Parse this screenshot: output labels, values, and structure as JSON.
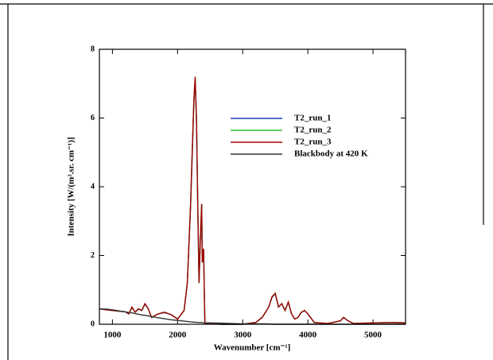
{
  "chart_data": {
    "type": "line",
    "x_label": "Wavenumber [cm⁻¹]",
    "y_label": "Intensity [W/(m².sr. cm⁻¹)]",
    "x": [
      800,
      900,
      1000,
      1100,
      1200,
      1250,
      1300,
      1350,
      1400,
      1450,
      1500,
      1550,
      1600,
      1700,
      1800,
      1900,
      2000,
      2100,
      2150,
      2200,
      2250,
      2270,
      2290,
      2310,
      2330,
      2350,
      2370,
      2380,
      2400,
      2410,
      2420,
      2500,
      2700,
      3000,
      3200,
      3300,
      3400,
      3450,
      3500,
      3550,
      3600,
      3650,
      3700,
      3750,
      3800,
      3850,
      3900,
      3950,
      4000,
      4100,
      4300,
      4500,
      4550,
      4600,
      4700,
      5000,
      5300,
      5500
    ],
    "series": [
      {
        "name": "T2_run_1",
        "color": "#1f3fbf",
        "values": [
          0.45,
          0.42,
          0.4,
          0.38,
          0.36,
          0.3,
          0.48,
          0.35,
          0.44,
          0.4,
          0.58,
          0.45,
          0.2,
          0.3,
          0.34,
          0.28,
          0.15,
          0.4,
          1.2,
          3.4,
          6.4,
          7.1,
          6.0,
          3.5,
          1.2,
          2.5,
          3.4,
          1.8,
          2.1,
          1.0,
          0.02,
          0.01,
          0,
          0,
          0.05,
          0.2,
          0.5,
          0.78,
          0.88,
          0.5,
          0.6,
          0.4,
          0.63,
          0.3,
          0.15,
          0.2,
          0.34,
          0.4,
          0.3,
          0.05,
          0.02,
          0.1,
          0.2,
          0.12,
          0.02,
          0.04,
          0.05,
          0.04
        ]
      },
      {
        "name": "T2_run_2",
        "color": "#2db82d",
        "values": [
          0.45,
          0.42,
          0.4,
          0.38,
          0.36,
          0.3,
          0.49,
          0.35,
          0.45,
          0.4,
          0.59,
          0.45,
          0.2,
          0.3,
          0.35,
          0.28,
          0.15,
          0.4,
          1.2,
          3.5,
          6.5,
          7.15,
          6.0,
          3.5,
          1.2,
          2.5,
          3.5,
          1.8,
          2.2,
          1.0,
          0.02,
          0.01,
          0,
          0,
          0.05,
          0.2,
          0.5,
          0.79,
          0.89,
          0.5,
          0.6,
          0.4,
          0.64,
          0.3,
          0.15,
          0.2,
          0.35,
          0.4,
          0.3,
          0.05,
          0.02,
          0.1,
          0.2,
          0.12,
          0.02,
          0.04,
          0.05,
          0.04
        ]
      },
      {
        "name": "T2_run_3",
        "color": "#a00000",
        "values": [
          0.45,
          0.42,
          0.4,
          0.38,
          0.36,
          0.3,
          0.5,
          0.35,
          0.45,
          0.4,
          0.6,
          0.45,
          0.2,
          0.3,
          0.35,
          0.28,
          0.15,
          0.4,
          1.2,
          3.5,
          6.5,
          7.2,
          6.0,
          3.5,
          1.2,
          2.5,
          3.5,
          1.8,
          2.2,
          1.0,
          0.02,
          0.01,
          0,
          0,
          0.05,
          0.2,
          0.5,
          0.8,
          0.9,
          0.5,
          0.6,
          0.4,
          0.65,
          0.3,
          0.15,
          0.2,
          0.35,
          0.4,
          0.3,
          0.05,
          0.02,
          0.1,
          0.2,
          0.12,
          0.02,
          0.04,
          0.05,
          0.04
        ]
      },
      {
        "name": "Blackbody at 420 K",
        "color": "#333333",
        "values": [
          0.45,
          0.44,
          0.42,
          0.39,
          0.36,
          0.34,
          0.33,
          0.31,
          0.29,
          0.27,
          0.26,
          0.24,
          0.22,
          0.19,
          0.16,
          0.13,
          0.11,
          0.09,
          0.08,
          0.07,
          0.06,
          0.06,
          0.06,
          0.05,
          0.05,
          0.05,
          0.05,
          0.05,
          0.04,
          0.04,
          0.04,
          0.04,
          0.03,
          0.01,
          0.01,
          0.01,
          0.01,
          0,
          0,
          0,
          0,
          0,
          0,
          0,
          0,
          0,
          0,
          0,
          0,
          0,
          0,
          0,
          0,
          0,
          0,
          0,
          0,
          0
        ]
      }
    ],
    "xlim": [
      800,
      5500
    ],
    "xticks": [
      1000,
      2000,
      3000,
      4000,
      5000
    ],
    "ylim": [
      0,
      8
    ],
    "yticks": [
      0,
      2,
      4,
      6,
      8
    ]
  }
}
